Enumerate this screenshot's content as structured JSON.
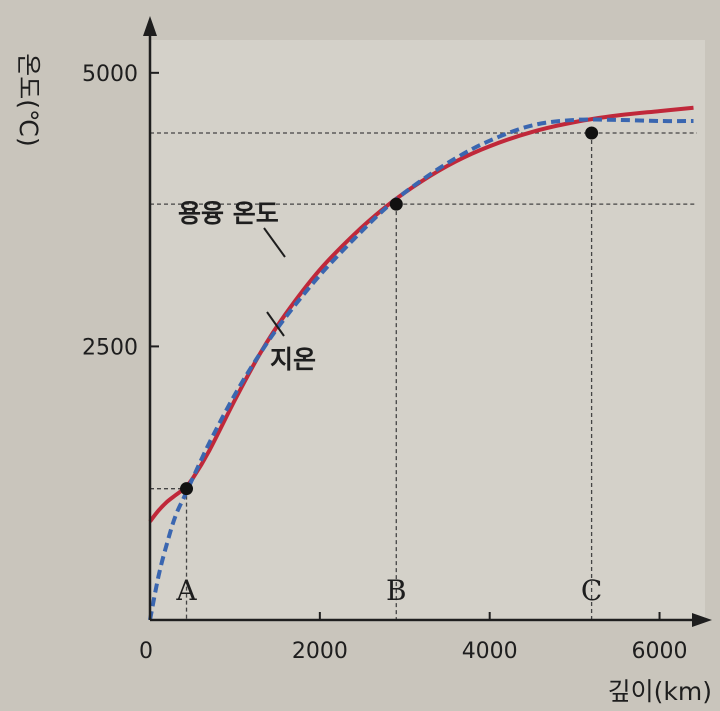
{
  "chart_data": {
    "type": "line",
    "xlabel": "깊이(km)",
    "ylabel": "온도(℃)",
    "xlim": [
      0,
      6500
    ],
    "ylim": [
      0,
      5300
    ],
    "x_ticks": [
      0,
      2000,
      4000,
      6000
    ],
    "x_tick_labels": [
      "0",
      "2000",
      "4000",
      "6000"
    ],
    "y_ticks": [
      2500,
      5000
    ],
    "y_tick_labels": [
      "2500",
      "5000"
    ],
    "grid": false,
    "series": [
      {
        "name": "용융 온도",
        "style": "solid",
        "color": "#c0283a",
        "x": [
          0,
          100,
          200,
          300,
          400,
          500,
          700,
          1000,
          1300,
          1600,
          2000,
          2400,
          2800,
          3200,
          3600,
          4000,
          4500,
          5000,
          5500,
          6000,
          6400
        ],
        "y": [
          900,
          1000,
          1080,
          1140,
          1200,
          1290,
          1550,
          2010,
          2440,
          2800,
          3200,
          3520,
          3790,
          4010,
          4190,
          4330,
          4460,
          4550,
          4610,
          4650,
          4680
        ]
      },
      {
        "name": "지온",
        "style": "dashed",
        "color": "#3a66b0",
        "x": [
          0,
          100,
          200,
          300,
          400,
          500,
          700,
          1000,
          1300,
          1600,
          2000,
          2400,
          2800,
          3200,
          3600,
          4000,
          4500,
          5000,
          5500,
          6000,
          6400
        ],
        "y": [
          0,
          400,
          700,
          950,
          1120,
          1290,
          1620,
          2060,
          2440,
          2770,
          3150,
          3480,
          3780,
          4020,
          4220,
          4380,
          4520,
          4570,
          4570,
          4560,
          4560
        ]
      }
    ],
    "points": [
      {
        "label": "A",
        "x": 430,
        "y": 1200
      },
      {
        "label": "B",
        "x": 2900,
        "y": 3800
      },
      {
        "label": "C",
        "x": 5200,
        "y": 4450
      }
    ]
  }
}
